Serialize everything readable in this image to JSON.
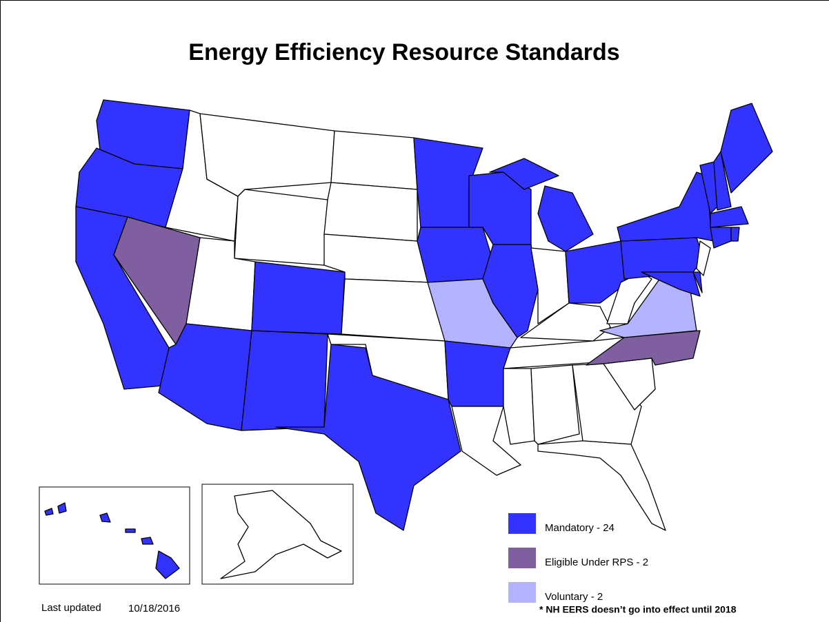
{
  "title": "Energy Efficiency Resource Standards",
  "legend": [
    {
      "label": "Mandatory - 24",
      "color": "#3333ff"
    },
    {
      "label": "Eligible Under RPS - 2",
      "color": "#7f5f9f"
    },
    {
      "label": "Voluntary - 2",
      "color": "#b3b3ff"
    }
  ],
  "footnote": "* NH EERS doesn’t go into effect until 2018",
  "last_updated": {
    "label": "Last updated",
    "date": "10/18/2016"
  }
}
